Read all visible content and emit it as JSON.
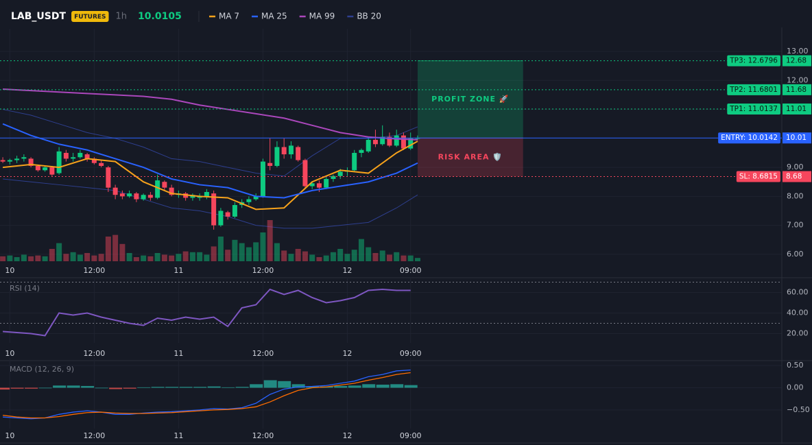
{
  "header": {
    "symbol": "LAB_USDT",
    "badge": "FUTURES",
    "interval": "1h",
    "price": 10.0105
  },
  "chart_data": [
    {
      "type": "candlestick",
      "xlim": [
        -0.4,
        110.8
      ],
      "ylim": [
        5.76,
        13.64
      ],
      "xticks": [
        {
          "value": 1,
          "label": "10"
        },
        {
          "value": 13,
          "label": "12:00"
        },
        {
          "value": 25,
          "label": "11"
        },
        {
          "value": 37,
          "label": "12:00"
        },
        {
          "value": 49,
          "label": "12"
        },
        {
          "value": 58,
          "label": "09:00"
        }
      ],
      "yticks": [
        {
          "value": 13,
          "label": "13.00"
        },
        {
          "value": 12,
          "label": "12.00"
        },
        {
          "value": 11,
          "label": "11.00"
        },
        {
          "value": 10,
          "label": "10.00"
        },
        {
          "value": 9,
          "label": "9.00"
        },
        {
          "value": 8,
          "label": "8.00"
        },
        {
          "value": 7,
          "label": "7.00"
        },
        {
          "value": 6,
          "label": "6.00"
        }
      ],
      "grid": true,
      "up_color": "#0ecb81",
      "down_color": "#f6465d",
      "open": [
        9.25,
        9.2,
        9.25,
        9.3,
        9.3,
        9.05,
        8.9,
        9.0,
        8.8,
        9.5,
        9.3,
        9.35,
        9.45,
        9.3,
        9.15,
        9.0,
        8.3,
        8.1,
        8.0,
        8.1,
        7.9,
        8.05,
        7.95,
        8.5,
        8.3,
        8.05,
        8.1,
        7.95,
        7.95,
        8.0,
        8.1,
        7.0,
        7.45,
        7.3,
        7.7,
        7.8,
        7.9,
        8.0,
        9.15,
        9.05,
        9.7,
        9.45,
        9.7,
        9.25,
        8.35,
        8.45,
        8.3,
        8.6,
        8.7,
        8.85,
        8.9,
        9.5,
        9.55,
        9.95,
        9.8,
        10.05,
        9.75,
        10.1,
        9.65,
        10.0
      ],
      "high": [
        9.35,
        9.3,
        9.4,
        9.45,
        9.35,
        9.1,
        9.05,
        9.05,
        9.7,
        9.6,
        9.5,
        9.6,
        9.5,
        9.35,
        9.25,
        9.05,
        8.4,
        8.2,
        8.2,
        8.15,
        8.1,
        8.15,
        8.75,
        8.55,
        8.4,
        8.2,
        8.15,
        8.1,
        8.1,
        8.25,
        8.2,
        7.6,
        7.5,
        7.8,
        7.9,
        8.0,
        8.1,
        9.3,
        10.0,
        9.9,
        10.0,
        9.9,
        9.75,
        9.3,
        8.5,
        8.55,
        8.7,
        8.75,
        8.95,
        9.0,
        9.6,
        9.65,
        10.05,
        10.3,
        10.45,
        10.2,
        10.3,
        10.2,
        10.2,
        10.1
      ],
      "low": [
        9.15,
        9.1,
        9.15,
        9.2,
        9.0,
        8.85,
        8.85,
        8.7,
        8.75,
        9.2,
        9.2,
        9.3,
        9.2,
        9.1,
        9.0,
        8.15,
        7.9,
        7.9,
        7.95,
        7.8,
        7.85,
        7.85,
        7.9,
        8.2,
        8.0,
        7.95,
        7.85,
        7.85,
        7.85,
        7.9,
        6.85,
        6.95,
        7.2,
        7.25,
        7.6,
        7.7,
        7.85,
        7.95,
        8.9,
        9.0,
        9.3,
        9.3,
        9.2,
        8.3,
        8.25,
        8.15,
        8.25,
        8.5,
        8.6,
        8.7,
        8.85,
        9.35,
        9.5,
        9.7,
        9.75,
        9.7,
        9.7,
        9.6,
        9.6,
        9.95
      ],
      "close": [
        9.2,
        9.25,
        9.3,
        9.35,
        9.05,
        8.9,
        9.0,
        8.75,
        9.55,
        9.3,
        9.35,
        9.5,
        9.3,
        9.15,
        9.05,
        8.3,
        8.05,
        8.0,
        8.1,
        7.9,
        8.05,
        7.95,
        8.55,
        8.3,
        8.05,
        8.1,
        7.95,
        8.05,
        8.0,
        8.15,
        7.0,
        7.5,
        7.3,
        7.7,
        7.8,
        7.9,
        8.0,
        9.2,
        9.05,
        9.7,
        9.45,
        9.75,
        9.25,
        8.35,
        8.45,
        8.3,
        8.6,
        8.7,
        8.85,
        8.9,
        9.5,
        9.6,
        9.95,
        9.8,
        10.05,
        9.75,
        10.1,
        9.65,
        10.0,
        10.01
      ],
      "volume": [
        12,
        14,
        10,
        16,
        12,
        14,
        12,
        30,
        44,
        18,
        22,
        16,
        20,
        14,
        18,
        60,
        64,
        42,
        20,
        10,
        14,
        12,
        20,
        16,
        14,
        18,
        24,
        22,
        22,
        16,
        36,
        60,
        28,
        52,
        44,
        34,
        46,
        70,
        100,
        44,
        26,
        18,
        30,
        24,
        16,
        10,
        14,
        22,
        30,
        18,
        28,
        54,
        34,
        20,
        26,
        16,
        22,
        14,
        14,
        8
      ],
      "series": [
        {
          "name": "MA 7",
          "color": "#f7a21b",
          "x": [
            0,
            4,
            8,
            12,
            16,
            20,
            24,
            28,
            32,
            36,
            40,
            44,
            48,
            52,
            56,
            59
          ],
          "values": [
            9.0,
            9.1,
            9.0,
            9.3,
            9.2,
            8.5,
            8.1,
            8.0,
            7.95,
            7.55,
            7.6,
            8.5,
            8.9,
            8.8,
            9.5,
            9.9
          ]
        },
        {
          "name": "MA 25",
          "color": "#2962ff",
          "x": [
            0,
            4,
            8,
            12,
            16,
            20,
            24,
            28,
            32,
            36,
            40,
            44,
            48,
            52,
            56,
            59
          ],
          "values": [
            10.5,
            10.1,
            9.8,
            9.6,
            9.3,
            9.0,
            8.6,
            8.4,
            8.3,
            8.0,
            7.95,
            8.2,
            8.35,
            8.5,
            8.8,
            9.15
          ]
        },
        {
          "name": "MA 99",
          "color": "#ab47bc",
          "x": [
            0,
            4,
            8,
            12,
            16,
            20,
            24,
            28,
            32,
            36,
            40,
            44,
            48,
            52,
            56,
            59
          ],
          "values": [
            11.7,
            11.65,
            11.6,
            11.55,
            11.5,
            11.45,
            11.35,
            11.15,
            11.0,
            10.85,
            10.7,
            10.45,
            10.2,
            10.05,
            9.98,
            9.95
          ]
        }
      ],
      "bands": {
        "name": "BB 20",
        "color": "#2e3f8f",
        "x": [
          0,
          4,
          8,
          12,
          16,
          20,
          24,
          28,
          32,
          36,
          40,
          44,
          48,
          52,
          56,
          59
        ],
        "upper": [
          11.0,
          10.8,
          10.5,
          10.2,
          10.0,
          9.7,
          9.3,
          9.2,
          9.0,
          8.8,
          8.7,
          9.4,
          10.0,
          10.0,
          10.1,
          10.4
        ],
        "lower": [
          8.6,
          8.5,
          8.4,
          8.3,
          8.2,
          7.9,
          7.6,
          7.5,
          7.3,
          7.0,
          6.9,
          6.9,
          7.0,
          7.1,
          7.6,
          8.05
        ]
      },
      "levels": [
        {
          "name": "TP3: 12.6796",
          "value": 12.6796,
          "axis_label": "12.68",
          "color": "#0ecb81"
        },
        {
          "name": "TP2: 11.6801",
          "value": 11.6801,
          "axis_label": "11.68",
          "color": "#0ecb81"
        },
        {
          "name": "TP1: 11.0137",
          "value": 11.0137,
          "axis_label": "11.01",
          "color": "#0ecb81"
        },
        {
          "name": "ENTRY: 10.0142",
          "value": 10.0142,
          "axis_label": "10.01",
          "color": "#2962ff"
        },
        {
          "name": "SL: 8.6815",
          "value": 8.6815,
          "axis_label": "8.68",
          "color": "#f6465d"
        }
      ],
      "zones": [
        {
          "label": "PROFIT ZONE 🚀",
          "color": "#0ecb81"
        },
        {
          "label": "RISK AREA 🛡️",
          "color": "#f6465d"
        }
      ]
    },
    {
      "type": "rsi",
      "title": "RSI (14)",
      "ylim": [
        11,
        71
      ],
      "yticks": [
        {
          "value": 60,
          "label": "60.00"
        },
        {
          "value": 40,
          "label": "40.00"
        },
        {
          "value": 20,
          "label": "20.00"
        }
      ],
      "bands": [
        70,
        30
      ],
      "color": "#7e57c2",
      "x": [
        0,
        2,
        4,
        6,
        8,
        10,
        12,
        14,
        16,
        18,
        20,
        22,
        24,
        26,
        28,
        30,
        32,
        34,
        36,
        38,
        40,
        42,
        44,
        46,
        48,
        50,
        52,
        54,
        56,
        58
      ],
      "values": [
        22,
        21,
        20,
        18,
        40,
        38,
        40,
        36,
        33,
        30,
        28,
        35,
        33,
        36,
        34,
        36,
        27,
        45,
        48,
        63,
        58,
        62,
        55,
        50,
        52,
        55,
        62,
        63,
        62,
        62
      ]
    },
    {
      "type": "macd",
      "title": "MACD (12, 26, 9)",
      "ylim": [
        -0.92,
        0.58
      ],
      "yticks": [
        {
          "value": 0.5,
          "label": "0.50"
        },
        {
          "value": 0,
          "label": "0.00"
        },
        {
          "value": -0.5,
          "label": "−0.50"
        }
      ],
      "x": [
        0,
        2,
        4,
        6,
        8,
        10,
        12,
        14,
        16,
        18,
        20,
        22,
        24,
        26,
        28,
        30,
        32,
        34,
        36,
        38,
        40,
        42,
        44,
        46,
        48,
        50,
        52,
        54,
        56,
        58
      ],
      "histogram": [
        -0.04,
        -0.02,
        -0.02,
        0,
        0.05,
        0.05,
        0.04,
        0,
        -0.03,
        -0.02,
        0.01,
        0.02,
        0.02,
        0.02,
        0.02,
        0.03,
        0.01,
        0.02,
        0.08,
        0.17,
        0.15,
        0.08,
        0.03,
        0.03,
        0.04,
        0.05,
        0.08,
        0.07,
        0.08,
        0.06
      ],
      "up_color": "#26a69a",
      "down_color": "#ef5350",
      "series": [
        {
          "name": "MACD",
          "color": "#2962ff",
          "values": [
            -0.66,
            -0.68,
            -0.7,
            -0.68,
            -0.6,
            -0.55,
            -0.52,
            -0.55,
            -0.6,
            -0.6,
            -0.57,
            -0.55,
            -0.54,
            -0.52,
            -0.5,
            -0.47,
            -0.48,
            -0.45,
            -0.35,
            -0.15,
            -0.03,
            0.02,
            0.03,
            0.05,
            0.1,
            0.15,
            0.25,
            0.3,
            0.38,
            0.4
          ]
        },
        {
          "name": "Signal",
          "color": "#ff6d00",
          "values": [
            -0.62,
            -0.66,
            -0.68,
            -0.68,
            -0.65,
            -0.6,
            -0.56,
            -0.55,
            -0.57,
            -0.58,
            -0.58,
            -0.57,
            -0.56,
            -0.54,
            -0.52,
            -0.5,
            -0.49,
            -0.47,
            -0.43,
            -0.32,
            -0.18,
            -0.06,
            0.0,
            0.02,
            0.06,
            0.1,
            0.17,
            0.23,
            0.3,
            0.34
          ]
        }
      ]
    }
  ]
}
